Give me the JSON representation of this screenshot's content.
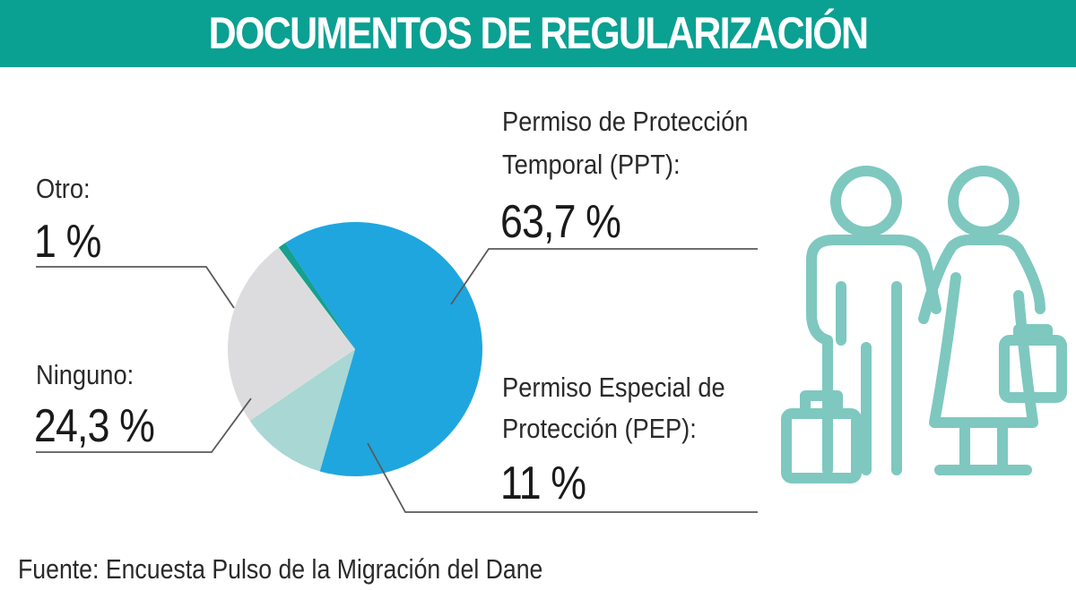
{
  "header": {
    "title": "DOCUMENTOS DE REGULARIZACIÓN"
  },
  "colors": {
    "header": "#0aa092",
    "icon": "#7ec8c0",
    "leader": "#5a5a5a"
  },
  "icons": {
    "travelers": "travelers-with-suitcases-icon"
  },
  "source": "Fuente: Encuesta Pulso de la Migración del Dane",
  "chart_data": {
    "type": "pie",
    "title": "DOCUMENTOS DE REGULARIZACIÓN",
    "slices": [
      {
        "label_lines": [
          "Permiso de Protección",
          "Temporal (PPT):"
        ],
        "value": 63.7,
        "value_text": "63,7 %",
        "color": "#1fa6df"
      },
      {
        "label_lines": [
          "Permiso Especial de",
          "Protección (PEP):"
        ],
        "value": 11,
        "value_text": "11 %",
        "color": "#a9d7d3"
      },
      {
        "label_lines": [
          "Ninguno:"
        ],
        "value": 24.3,
        "value_text": "24,3 %",
        "color": "#dcdcde"
      },
      {
        "label_lines": [
          "Otro:"
        ],
        "value": 1,
        "value_text": "1 %",
        "color": "#15a08f"
      }
    ]
  }
}
